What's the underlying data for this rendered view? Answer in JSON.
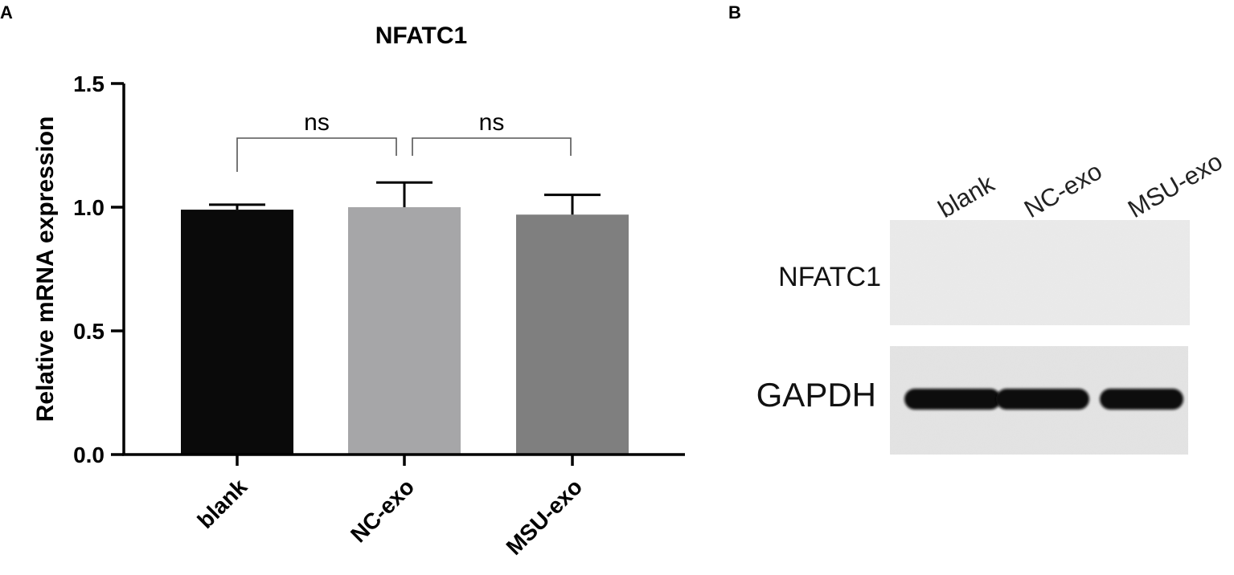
{
  "panels": {
    "a": "A",
    "b": "B"
  },
  "chart_data": {
    "type": "bar",
    "title": "NFATC1",
    "ylabel": "Relative mRNA expression",
    "xlabel": "",
    "ylim": [
      0,
      1.5
    ],
    "yticks": [
      "0.0",
      "0.5",
      "1.0",
      "1.5"
    ],
    "categories": [
      "blank",
      "NC-exo",
      "MSU-exo"
    ],
    "values": [
      0.99,
      1.0,
      0.97
    ],
    "errors": [
      0.02,
      0.1,
      0.08
    ],
    "colors": [
      "#0a0a0a",
      "#a6a6a8",
      "#7f7f7f"
    ],
    "comparisons": [
      {
        "from": "blank",
        "to": "NC-exo",
        "label": "ns"
      },
      {
        "from": "NC-exo",
        "to": "MSU-exo",
        "label": "ns"
      }
    ]
  },
  "western_blot": {
    "lanes": [
      "blank",
      "NC-exo",
      "MSU-exo"
    ],
    "rows": [
      {
        "label": "NFATC1",
        "band_intensity": [
          0,
          0,
          0
        ]
      },
      {
        "label": "GAPDH",
        "band_intensity": [
          1,
          1,
          1
        ]
      }
    ]
  }
}
